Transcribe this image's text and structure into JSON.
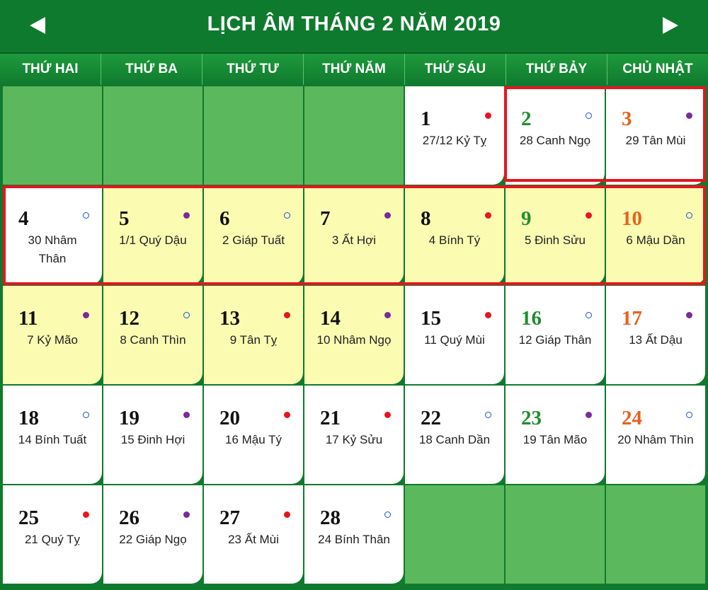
{
  "calendar": {
    "title": "LỊCH ÂM THÁNG 2 NĂM 2019",
    "nav": {
      "prev_symbol": "◀",
      "next_symbol": "▶"
    },
    "weekdays": [
      "THỨ HAI",
      "THỨ BA",
      "THỨ TƯ",
      "THỨ NĂM",
      "THỨ SÁU",
      "THỨ BẢY",
      "CHỦ NHẬT"
    ],
    "colors": {
      "header_green": "#0e7a2e",
      "empty_cell_green": "#5cb85c",
      "holiday_yellow": "#fbfbb2",
      "saturday_green": "#1f8f2e",
      "sunday_orange": "#e8601c",
      "good_day_red": "#e8141e",
      "bad_day_purple": "#7b2a9a",
      "highlight_box_red": "#e8141e"
    },
    "weeks": [
      [
        null,
        null,
        null,
        null,
        {
          "day": "1",
          "lunar": "27/12 Kỷ Tỵ",
          "dot": "red",
          "bg": "w"
        },
        {
          "day": "2",
          "lunar": "28 Canh Ngọ",
          "dot": "ring",
          "bg": "w"
        },
        {
          "day": "3",
          "lunar": "29 Tân Mùi",
          "dot": "purple",
          "bg": "w"
        }
      ],
      [
        {
          "day": "4",
          "lunar": "30 Nhâm Thân",
          "dot": "ring",
          "bg": "w"
        },
        {
          "day": "5",
          "lunar": "1/1 Quý Dậu",
          "dot": "purple",
          "bg": "y"
        },
        {
          "day": "6",
          "lunar": "2 Giáp Tuất",
          "dot": "ring",
          "bg": "y"
        },
        {
          "day": "7",
          "lunar": "3 Ất Hợi",
          "dot": "purple",
          "bg": "y"
        },
        {
          "day": "8",
          "lunar": "4 Bính Tý",
          "dot": "red",
          "bg": "y"
        },
        {
          "day": "9",
          "lunar": "5 Đinh Sửu",
          "dot": "red",
          "bg": "y"
        },
        {
          "day": "10",
          "lunar": "6 Mậu Dần",
          "dot": "ring",
          "bg": "y"
        }
      ],
      [
        {
          "day": "11",
          "lunar": "7 Kỷ Mão",
          "dot": "purple",
          "bg": "y"
        },
        {
          "day": "12",
          "lunar": "8 Canh Thìn",
          "dot": "ring",
          "bg": "y"
        },
        {
          "day": "13",
          "lunar": "9 Tân Tỵ",
          "dot": "red",
          "bg": "y"
        },
        {
          "day": "14",
          "lunar": "10 Nhâm Ngọ",
          "dot": "purple",
          "bg": "y"
        },
        {
          "day": "15",
          "lunar": "11 Quý Mùi",
          "dot": "red",
          "bg": "w"
        },
        {
          "day": "16",
          "lunar": "12 Giáp Thân",
          "dot": "ring",
          "bg": "w"
        },
        {
          "day": "17",
          "lunar": "13 Ất Dậu",
          "dot": "purple",
          "bg": "w"
        }
      ],
      [
        {
          "day": "18",
          "lunar": "14 Bính Tuất",
          "dot": "ring",
          "bg": "w"
        },
        {
          "day": "19",
          "lunar": "15 Đinh Hợi",
          "dot": "purple",
          "bg": "w"
        },
        {
          "day": "20",
          "lunar": "16 Mậu Tý",
          "dot": "red",
          "bg": "w"
        },
        {
          "day": "21",
          "lunar": "17 Kỷ Sửu",
          "dot": "red",
          "bg": "w"
        },
        {
          "day": "22",
          "lunar": "18 Canh Dần",
          "dot": "ring",
          "bg": "w"
        },
        {
          "day": "23",
          "lunar": "19 Tân Mão",
          "dot": "purple",
          "bg": "w"
        },
        {
          "day": "24",
          "lunar": "20 Nhâm Thìn",
          "dot": "ring",
          "bg": "w"
        }
      ],
      [
        {
          "day": "25",
          "lunar": "21 Quý Tỵ",
          "dot": "red",
          "bg": "w"
        },
        {
          "day": "26",
          "lunar": "22 Giáp Ngọ",
          "dot": "purple",
          "bg": "w"
        },
        {
          "day": "27",
          "lunar": "23 Ất Mùi",
          "dot": "red",
          "bg": "w"
        },
        {
          "day": "28",
          "lunar": "24 Bính Thân",
          "dot": "ring",
          "bg": "w"
        },
        null,
        null,
        null
      ]
    ]
  }
}
